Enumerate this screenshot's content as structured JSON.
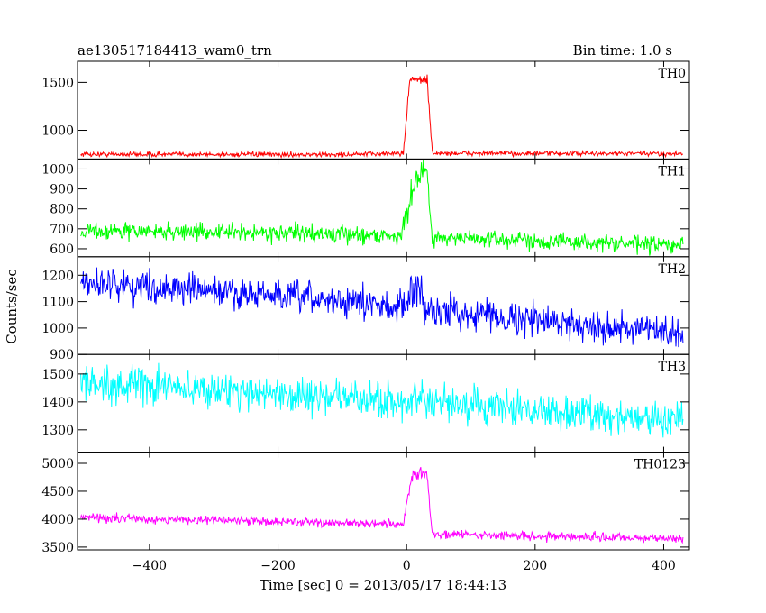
{
  "chart_data": {
    "type": "line",
    "title": "ae130517184413_wam0_trn",
    "subtitle": "Bin time: 1.0 s",
    "xlabel": "Time [sec] 0 = 2013/05/17 18:44:13",
    "ylabel": "Counts/sec",
    "xlim": [
      -512,
      440
    ],
    "x_ticks": [
      -400,
      -200,
      0,
      200,
      400
    ],
    "x_range": [
      -507,
      430
    ],
    "panels": [
      {
        "name": "TH0",
        "color": "#ff0000",
        "ylim": [
          700,
          1720
        ],
        "y_ticks": [
          1000,
          1500
        ],
        "baseline": [
          [
            -507,
            750
          ],
          [
            -100,
            745
          ],
          [
            -10,
            760
          ],
          [
            430,
            755
          ]
        ],
        "noise": 18,
        "burst": {
          "start": -5,
          "peak": 5,
          "end": 40,
          "level": 1530
        }
      },
      {
        "name": "TH1",
        "color": "#00ff00",
        "ylim": [
          560,
          1050
        ],
        "y_ticks": [
          600,
          700,
          800,
          900,
          1000
        ],
        "baseline": [
          [
            -507,
            690
          ],
          [
            -200,
            680
          ],
          [
            -20,
            665
          ],
          [
            430,
            615
          ]
        ],
        "noise": 30,
        "burst": {
          "start": -8,
          "peak": 15,
          "end": 40,
          "level": 985
        }
      },
      {
        "name": "TH2",
        "color": "#0000ff",
        "ylim": [
          900,
          1270
        ],
        "y_ticks": [
          900,
          1000,
          1100,
          1200
        ],
        "baseline": [
          [
            -507,
            1175
          ],
          [
            -200,
            1120
          ],
          [
            0,
            1080
          ],
          [
            430,
            975
          ]
        ],
        "noise": 42,
        "burst": {
          "start": 0,
          "peak": 12,
          "end": 25,
          "level": 1170
        }
      },
      {
        "name": "TH3",
        "color": "#00ffff",
        "ylim": [
          1220,
          1570
        ],
        "y_ticks": [
          1300,
          1400,
          1500
        ],
        "baseline": [
          [
            -507,
            1470
          ],
          [
            -200,
            1430
          ],
          [
            0,
            1400
          ],
          [
            430,
            1335
          ]
        ],
        "noise": 45,
        "burst": null
      },
      {
        "name": "TH0123",
        "color": "#ff00ff",
        "ylim": [
          3450,
          5200
        ],
        "y_ticks": [
          3500,
          4000,
          4500,
          5000
        ],
        "baseline": [
          [
            -507,
            4030
          ],
          [
            -200,
            3960
          ],
          [
            -10,
            3900
          ],
          [
            40,
            3730
          ],
          [
            430,
            3650
          ]
        ],
        "noise": 55,
        "burst": {
          "start": -5,
          "peak": 8,
          "end": 40,
          "level": 4800
        }
      }
    ]
  }
}
